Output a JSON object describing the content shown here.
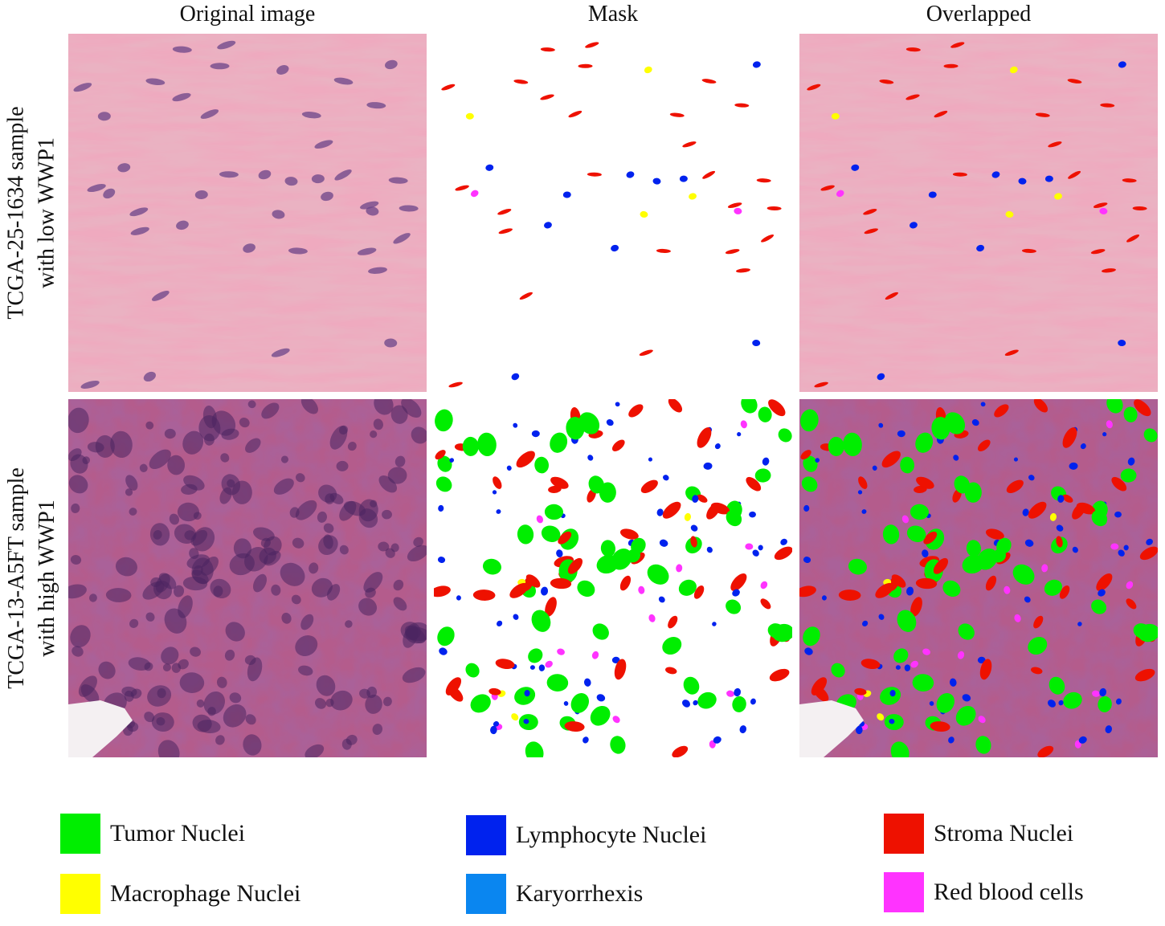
{
  "headers": {
    "original": "Original image",
    "mask": "Mask",
    "overlapped": "Overlapped"
  },
  "rows": [
    {
      "line1": "TCGA-25-1634 sample",
      "line2": "with low WWP1"
    },
    {
      "line1": "TCGA-13-A5FT sample",
      "line2": "with high WWP1"
    }
  ],
  "legend": [
    {
      "label": "Tumor Nuclei",
      "color": "#00ee00"
    },
    {
      "label": "Lymphocyte Nuclei",
      "color": "#0022ee"
    },
    {
      "label": "Stroma Nuclei",
      "color": "#ee1100"
    },
    {
      "label": "Macrophage Nuclei",
      "color": "#ffff00"
    },
    {
      "label": "Karyorrhexis",
      "color": "#0a86f0"
    },
    {
      "label": "Red blood cells",
      "color": "#ff33ff"
    }
  ],
  "colors": {
    "tissue_low": "#e8a6b8",
    "tissue_high": "#a8507e",
    "tumor": "#00ee00",
    "lymphocyte": "#0022ee",
    "stroma": "#ee1100",
    "macrophage": "#ffff00",
    "rbc": "#ff33ff"
  }
}
